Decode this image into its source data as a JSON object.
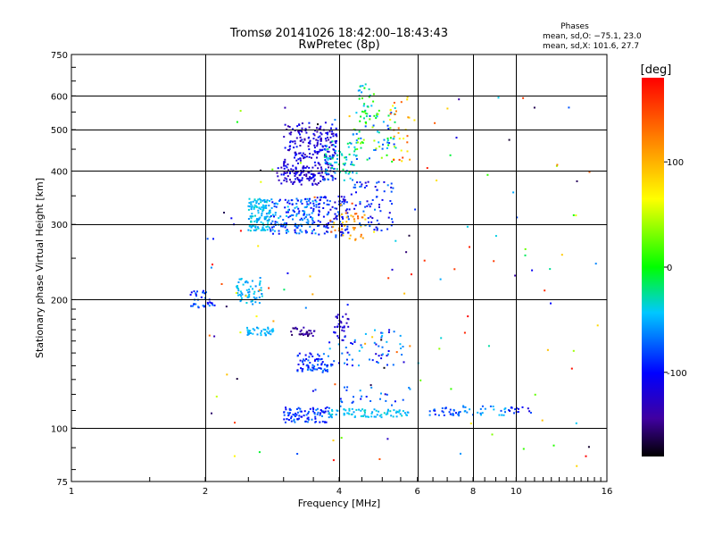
{
  "chart_data": {
    "type": "scatter",
    "title": "Tromsø 20141026 18:42:00–18:43:43",
    "subtitle": "RwPretec (8p)",
    "xlabel": "Frequency [MHz]",
    "ylabel": "Stationary phase Virtual Height [km]",
    "x_scale": "log",
    "y_scale": "log",
    "xlim": [
      1,
      16
    ],
    "ylim": [
      75,
      750
    ],
    "x_ticks": [
      1,
      2,
      4,
      6,
      8,
      10,
      16
    ],
    "y_ticks": [
      75,
      100,
      200,
      300,
      400,
      500,
      600,
      750
    ],
    "grid": true,
    "info": {
      "heading": "Phases",
      "line1": "mean, sd,O: −75.1, 23.0",
      "line2": "mean, sd,X: 101.6, 27.7"
    },
    "colorbar": {
      "label": "[deg]",
      "range": [
        -180,
        180
      ],
      "ticks": [
        100,
        0,
        -100
      ],
      "colormap": "rainbow"
    },
    "clusters": [
      {
        "x": [
          3.0,
          3.95
        ],
        "y": [
          380,
          520
        ],
        "phase": [
          -145,
          -90
        ],
        "n": 260
      },
      {
        "x": [
          3.7,
          4.4
        ],
        "y": [
          380,
          470
        ],
        "phase": [
          -70,
          -10
        ],
        "n": 70
      },
      {
        "x": [
          4.3,
          5.4
        ],
        "y": [
          420,
          560
        ],
        "phase": [
          -90,
          50
        ],
        "n": 70
      },
      {
        "x": [
          5.2,
          5.8
        ],
        "y": [
          420,
          600
        ],
        "phase": [
          60,
          160
        ],
        "n": 30
      },
      {
        "x": [
          4.4,
          4.8
        ],
        "y": [
          520,
          640
        ],
        "phase": [
          -60,
          20
        ],
        "n": 30
      },
      {
        "x": [
          2.5,
          2.8
        ],
        "y": [
          290,
          345
        ],
        "phase": [
          -60,
          -30
        ],
        "n": 130
      },
      {
        "x": [
          2.8,
          3.6
        ],
        "y": [
          285,
          345
        ],
        "phase": [
          -110,
          -40
        ],
        "n": 160
      },
      {
        "x": [
          3.55,
          4.2
        ],
        "y": [
          280,
          350
        ],
        "phase": [
          -130,
          -70
        ],
        "n": 100
      },
      {
        "x": [
          3.8,
          4.6
        ],
        "y": [
          275,
          320
        ],
        "phase": [
          80,
          140
        ],
        "n": 40
      },
      {
        "x": [
          4.2,
          5.3
        ],
        "y": [
          290,
          380
        ],
        "phase": [
          -120,
          -60
        ],
        "n": 70
      },
      {
        "x": [
          2.9,
          3.7
        ],
        "y": [
          370,
          410
        ],
        "phase": [
          -140,
          -100
        ],
        "n": 60
      },
      {
        "x": [
          1.85,
          2.1
        ],
        "y": [
          190,
          210
        ],
        "phase": [
          -110,
          -60
        ],
        "n": 35
      },
      {
        "x": [
          2.35,
          2.7
        ],
        "y": [
          195,
          225
        ],
        "phase": [
          -65,
          -35
        ],
        "n": 60
      },
      {
        "x": [
          2.45,
          2.85
        ],
        "y": [
          165,
          172
        ],
        "phase": [
          -60,
          -40
        ],
        "n": 40
      },
      {
        "x": [
          3.1,
          3.55
        ],
        "y": [
          164,
          172
        ],
        "phase": [
          -160,
          -130
        ],
        "n": 30
      },
      {
        "x": [
          3.9,
          4.2
        ],
        "y": [
          160,
          185
        ],
        "phase": [
          -140,
          -100
        ],
        "n": 30
      },
      {
        "x": [
          3.2,
          3.8
        ],
        "y": [
          135,
          150
        ],
        "phase": [
          -110,
          -60
        ],
        "n": 70
      },
      {
        "x": [
          3.8,
          5.6
        ],
        "y": [
          140,
          170
        ],
        "phase": [
          -120,
          -40
        ],
        "n": 60
      },
      {
        "x": [
          3.0,
          3.8
        ],
        "y": [
          103,
          112
        ],
        "phase": [
          -110,
          -60
        ],
        "n": 90
      },
      {
        "x": [
          3.8,
          5.8
        ],
        "y": [
          106,
          111
        ],
        "phase": [
          -60,
          -30
        ],
        "n": 80
      },
      {
        "x": [
          6.3,
          7.5
        ],
        "y": [
          107,
          112
        ],
        "phase": [
          -100,
          -60
        ],
        "n": 30
      },
      {
        "x": [
          7.6,
          9.6
        ],
        "y": [
          107,
          113
        ],
        "phase": [
          -80,
          -40
        ],
        "n": 25
      },
      {
        "x": [
          9.6,
          10.8
        ],
        "y": [
          108,
          113
        ],
        "phase": [
          -120,
          -80
        ],
        "n": 15
      },
      {
        "x": [
          4.0,
          5.8
        ],
        "y": [
          112,
          125
        ],
        "phase": [
          -100,
          -50
        ],
        "n": 25
      },
      {
        "x": [
          6.0,
          16.0
        ],
        "y": [
          80,
          640
        ],
        "phase": [
          -180,
          180
        ],
        "n": 60
      },
      {
        "x": [
          2.0,
          6.0
        ],
        "y": [
          80,
          650
        ],
        "phase": [
          -180,
          180
        ],
        "n": 80
      }
    ]
  }
}
